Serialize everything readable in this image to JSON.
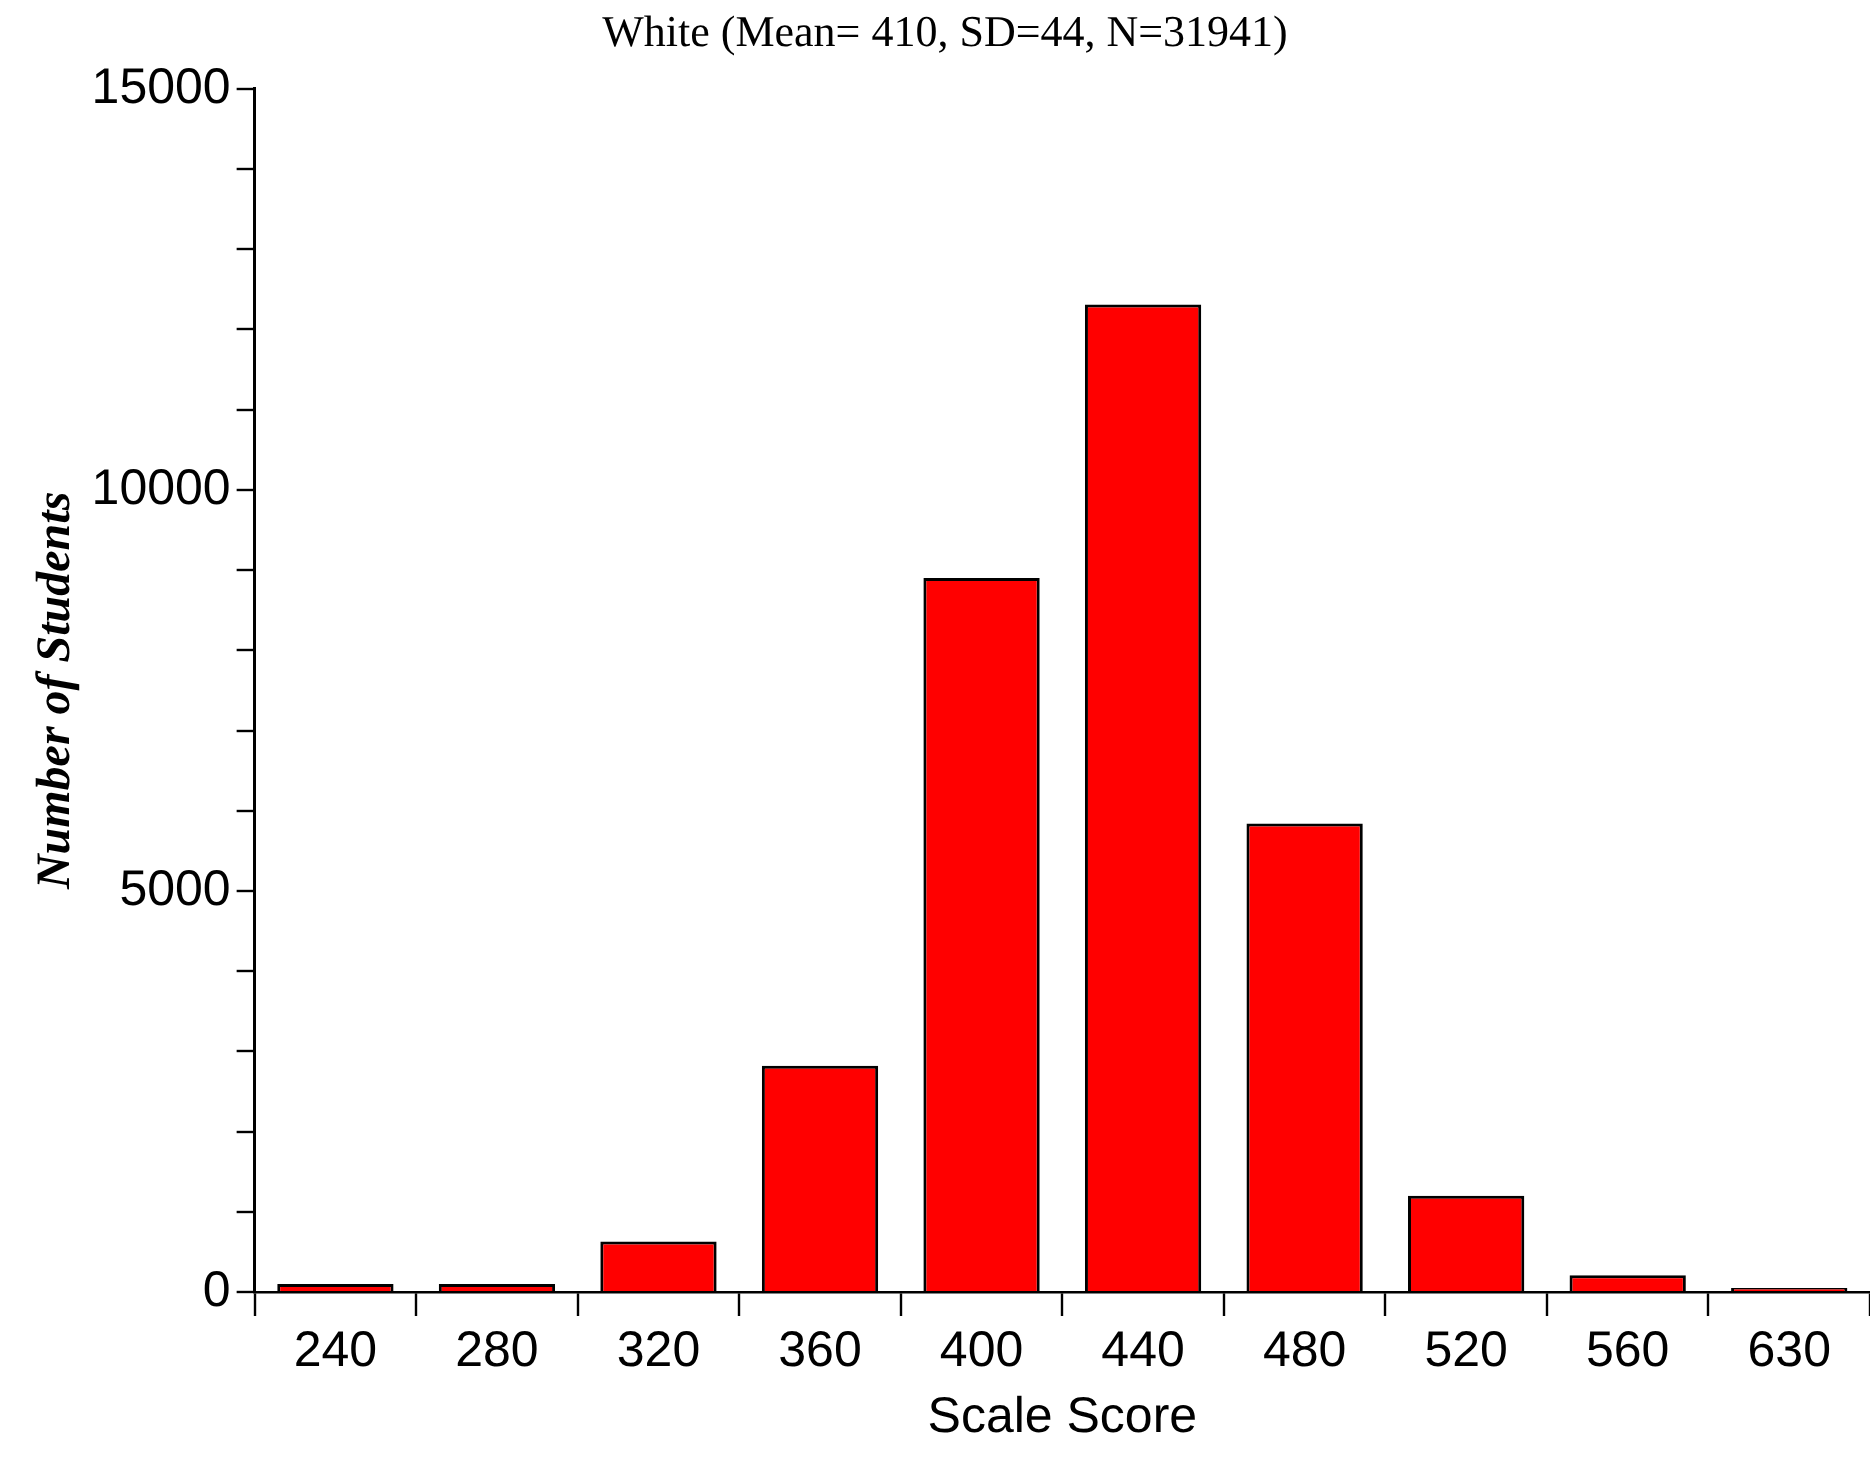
{
  "chart_data": {
    "type": "bar",
    "title": "White (Mean= 410, SD=44, N=31941)",
    "xlabel": "Scale Score",
    "ylabel": "Number of Students",
    "categories": [
      "240",
      "280",
      "320",
      "360",
      "400",
      "440",
      "480",
      "520",
      "560",
      "630"
    ],
    "values": [
      100,
      100,
      630,
      2820,
      8900,
      12310,
      5840,
      1200,
      210,
      50
    ],
    "color": "#ff0000",
    "ylim": [
      0,
      15000
    ],
    "yticks": [
      0,
      {
        "value": 1000,
        "label": null
      },
      {
        "value": 2000,
        "label": null
      },
      {
        "value": 3000,
        "label": null
      },
      {
        "value": 4000,
        "label": null
      },
      5000,
      {
        "value": 6000,
        "label": null
      },
      {
        "value": 7000,
        "label": null
      },
      {
        "value": 8000,
        "label": null
      },
      {
        "value": 9000,
        "label": null
      },
      10000,
      {
        "value": 11000,
        "label": null
      },
      {
        "value": 12000,
        "label": null
      },
      {
        "value": 13000,
        "label": null
      },
      {
        "value": 14000,
        "label": null
      },
      15000
    ],
    "grid": false,
    "legend": false
  }
}
